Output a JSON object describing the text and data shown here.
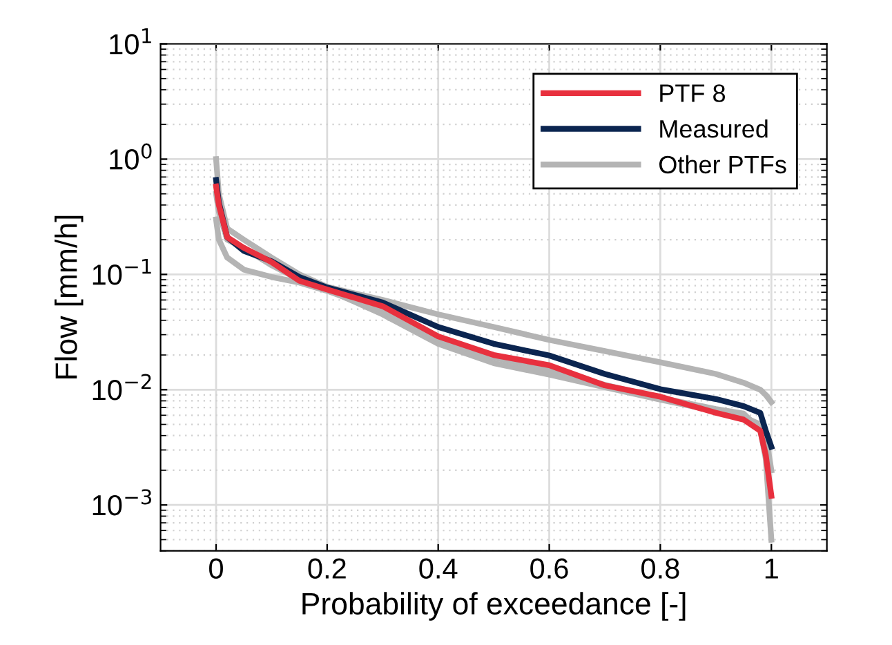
{
  "chart_data": {
    "type": "line",
    "xlabel": "Probability of exceedance [-]",
    "ylabel": "Flow [mm/h]",
    "log": "y",
    "grid": true,
    "legend": "top right",
    "line_style": "solid",
    "marker": "none",
    "xlim": [
      -0.1,
      1.1
    ],
    "xticks": [
      0,
      0.2,
      0.4,
      0.6,
      0.8,
      1
    ],
    "ylim": [
      0.0004,
      10
    ],
    "yticks": [
      {
        "value": 0.001,
        "label": "10$^{−3}$"
      },
      {
        "value": 0.01,
        "label": "10$^{−2}$"
      },
      {
        "value": 0.1,
        "label": "10$^{−1}$"
      },
      {
        "value": 1,
        "label": "10$^{0}$"
      },
      {
        "value": 10,
        "label": "10$^{1}$"
      }
    ],
    "x": [
      0,
      0.005,
      0.02,
      0.05,
      0.1,
      0.15,
      0.2,
      0.3,
      0.4,
      0.5,
      0.6,
      0.7,
      0.8,
      0.9,
      0.95,
      0.98,
      0.99,
      1.0
    ],
    "series": [
      {
        "name": "PTF 8",
        "color": "#e8303e",
        "values": [
          0.58,
          0.4,
          0.21,
          0.17,
          0.128,
          0.088,
          0.074,
          0.053,
          0.029,
          0.02,
          0.0163,
          0.0109,
          0.0087,
          0.0063,
          0.0055,
          0.0044,
          0.0027,
          0.0012
        ]
      },
      {
        "name": "Measured",
        "color": "#0b2550",
        "values": [
          0.66,
          0.42,
          0.21,
          0.16,
          0.13,
          0.095,
          0.077,
          0.057,
          0.035,
          0.025,
          0.0198,
          0.0137,
          0.0101,
          0.0083,
          0.0072,
          0.0063,
          0.0044,
          0.0032
        ]
      },
      {
        "name": "Other PTFs",
        "color": "#b4b4b4",
        "values": [
          1.0,
          0.5,
          0.25,
          0.2,
          0.14,
          0.1,
          0.078,
          0.06,
          0.045,
          0.035,
          0.027,
          0.0216,
          0.0173,
          0.0137,
          0.0115,
          0.01,
          0.009,
          0.0078
        ]
      },
      {
        "color": "#b4b4b4",
        "values": [
          0.3,
          0.2,
          0.14,
          0.11,
          0.095,
          0.085,
          0.072,
          0.048,
          0.027,
          0.019,
          0.015,
          0.011,
          0.0085,
          0.0068,
          0.0062,
          0.0045,
          0.0025,
          0.0005
        ]
      },
      {
        "color": "#b4b4b4",
        "values": [
          0.5,
          0.35,
          0.2,
          0.17,
          0.12,
          0.09,
          0.074,
          0.045,
          0.025,
          0.017,
          0.0135,
          0.0105,
          0.0082,
          0.0065,
          0.0058,
          0.005,
          0.004,
          0.002
        ]
      }
    ]
  }
}
